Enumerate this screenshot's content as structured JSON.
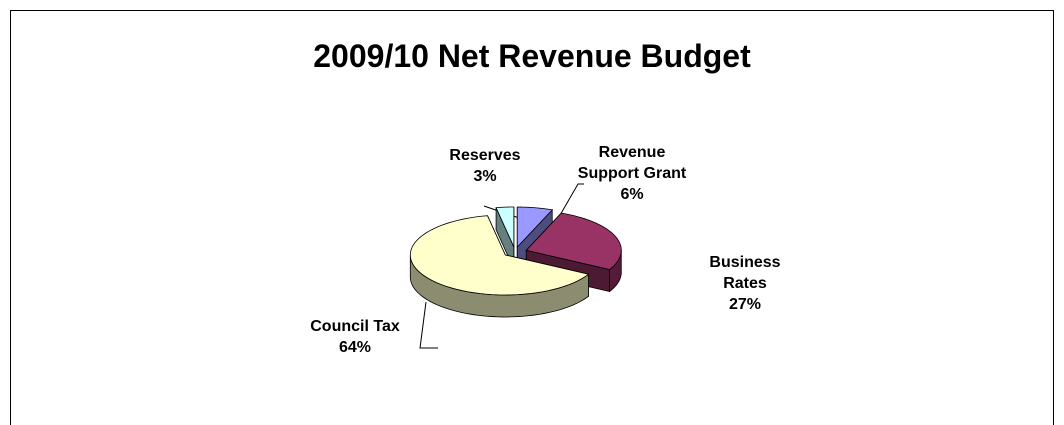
{
  "chart_data": {
    "type": "pie",
    "title": "2009/10 Net Revenue Budget",
    "categories": [
      "Revenue Support Grant",
      "Business Rates",
      "Council Tax",
      "Reserves"
    ],
    "values": [
      6,
      27,
      64,
      3
    ],
    "value_labels": [
      "6%",
      "27%",
      "64%",
      "3%"
    ],
    "colors": [
      "#9999ff",
      "#993366",
      "#ffffcc",
      "#ccffff"
    ]
  }
}
